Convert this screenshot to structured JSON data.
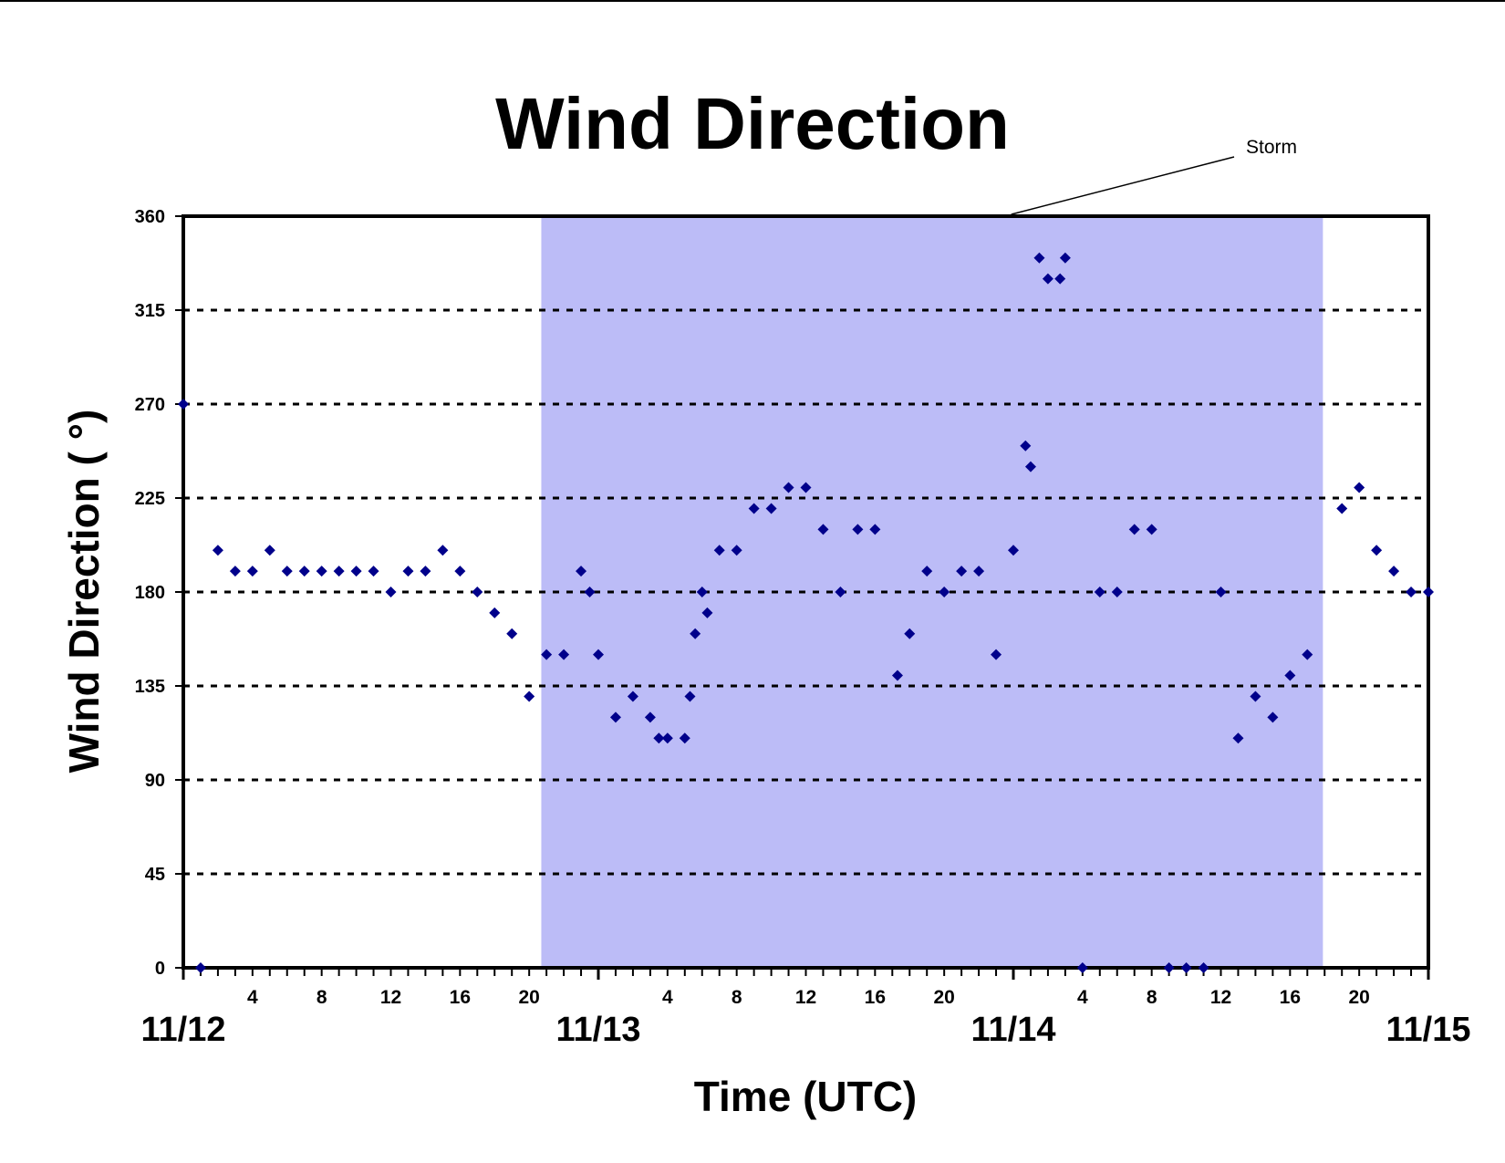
{
  "chart_data": {
    "type": "scatter",
    "title": "Wind Direction",
    "xlabel": "Time (UTC)",
    "ylabel": "Wind Direction ( °)",
    "ylim": [
      0,
      360
    ],
    "y_ticks": [
      0,
      45,
      90,
      135,
      180,
      225,
      270,
      315,
      360
    ],
    "x_unit": "hours since 11/12 00 UTC",
    "xlim": [
      0,
      72
    ],
    "grid": "horizontal dashed",
    "x_hour_tick_labels": [
      {
        "h": 4,
        "label": "4"
      },
      {
        "h": 8,
        "label": "8"
      },
      {
        "h": 12,
        "label": "12"
      },
      {
        "h": 16,
        "label": "16"
      },
      {
        "h": 20,
        "label": "20"
      },
      {
        "h": 28,
        "label": "4"
      },
      {
        "h": 32,
        "label": "8"
      },
      {
        "h": 36,
        "label": "12"
      },
      {
        "h": 40,
        "label": "16"
      },
      {
        "h": 44,
        "label": "20"
      },
      {
        "h": 52,
        "label": "4"
      },
      {
        "h": 56,
        "label": "8"
      },
      {
        "h": 60,
        "label": "12"
      },
      {
        "h": 64,
        "label": "16"
      },
      {
        "h": 68,
        "label": "20"
      }
    ],
    "x_date_labels": [
      {
        "h": 0,
        "label": "11/12"
      },
      {
        "h": 24,
        "label": "11/13"
      },
      {
        "h": 48,
        "label": "11/14"
      },
      {
        "h": 72,
        "label": "11/15"
      }
    ],
    "shaded_region": {
      "label": "Storm",
      "x_start": 20.7,
      "x_end": 65.9,
      "color": "#bcbcf7"
    },
    "marker_color": "#00008b",
    "series": [
      {
        "name": "",
        "points": [
          [
            0,
            270
          ],
          [
            1,
            0
          ],
          [
            2,
            200
          ],
          [
            3,
            190
          ],
          [
            4,
            190
          ],
          [
            5,
            200
          ],
          [
            6,
            190
          ],
          [
            7,
            190
          ],
          [
            8,
            190
          ],
          [
            9,
            190
          ],
          [
            10,
            190
          ],
          [
            11,
            190
          ],
          [
            12,
            180
          ],
          [
            13,
            190
          ],
          [
            14,
            190
          ],
          [
            15,
            200
          ],
          [
            16,
            190
          ],
          [
            17,
            180
          ],
          [
            18,
            170
          ],
          [
            19,
            160
          ],
          [
            20,
            130
          ],
          [
            21,
            150
          ],
          [
            22,
            150
          ],
          [
            23,
            190
          ],
          [
            23.5,
            180
          ],
          [
            24,
            150
          ],
          [
            25,
            120
          ],
          [
            26,
            130
          ],
          [
            27,
            120
          ],
          [
            27.5,
            110
          ],
          [
            28,
            110
          ],
          [
            29,
            110
          ],
          [
            29.3,
            130
          ],
          [
            29.6,
            160
          ],
          [
            30,
            180
          ],
          [
            30.3,
            170
          ],
          [
            31,
            200
          ],
          [
            32,
            200
          ],
          [
            33,
            220
          ],
          [
            34,
            220
          ],
          [
            35,
            230
          ],
          [
            36,
            230
          ],
          [
            37,
            210
          ],
          [
            38,
            180
          ],
          [
            39,
            210
          ],
          [
            40,
            210
          ],
          [
            41.3,
            140
          ],
          [
            42,
            160
          ],
          [
            43,
            190
          ],
          [
            44,
            180
          ],
          [
            45,
            190
          ],
          [
            46,
            190
          ],
          [
            47,
            150
          ],
          [
            48,
            200
          ],
          [
            48.7,
            250
          ],
          [
            49,
            240
          ],
          [
            49.5,
            340
          ],
          [
            50,
            330
          ],
          [
            50.7,
            330
          ],
          [
            51,
            340
          ],
          [
            52,
            0
          ],
          [
            53,
            180
          ],
          [
            54,
            180
          ],
          [
            55,
            210
          ],
          [
            56,
            210
          ],
          [
            57,
            0
          ],
          [
            58,
            0
          ],
          [
            59,
            0
          ],
          [
            60,
            180
          ],
          [
            61,
            110
          ],
          [
            62,
            130
          ],
          [
            63,
            120
          ],
          [
            64,
            140
          ],
          [
            65,
            150
          ],
          [
            67,
            220
          ],
          [
            68,
            230
          ],
          [
            69,
            200
          ],
          [
            70,
            190
          ],
          [
            71,
            180
          ],
          [
            72,
            180
          ]
        ]
      }
    ]
  }
}
